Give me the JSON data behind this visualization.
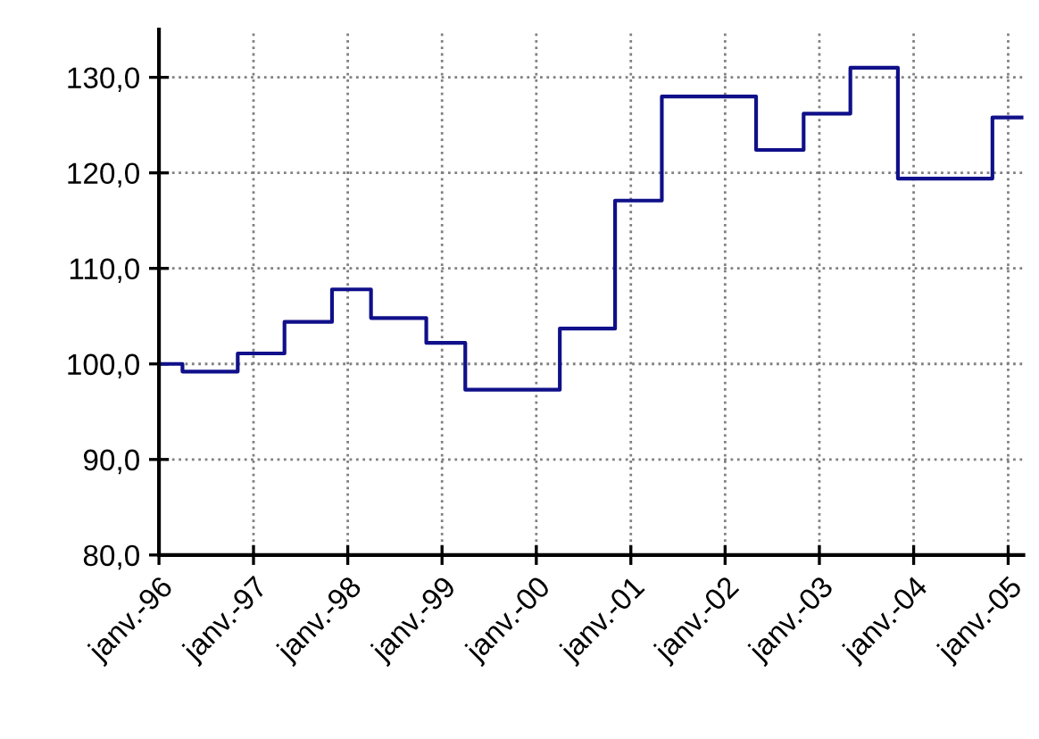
{
  "chart_data": {
    "type": "step",
    "x": [
      "1996-01",
      "1996-04",
      "1996-11",
      "1997-05",
      "1997-11",
      "1998-04",
      "1998-11",
      "1999-04",
      "2000-04",
      "2000-11",
      "2001-05",
      "2002-05",
      "2002-11",
      "2003-05",
      "2003-11",
      "2004-11",
      "2005-03"
    ],
    "series": [
      {
        "color": "#10108a",
        "values": [
          100.0,
          99.2,
          101.1,
          104.4,
          107.8,
          104.8,
          102.2,
          97.3,
          103.7,
          117.1,
          128.0,
          122.4,
          126.2,
          131.0,
          119.4,
          125.8,
          125.8
        ]
      }
    ],
    "xlim": [
      "1996-01",
      "2005-03"
    ],
    "xticks": [
      {
        "value": "1996-01",
        "label": "janv.-96"
      },
      {
        "value": "1997-01",
        "label": "janv.-97"
      },
      {
        "value": "1998-01",
        "label": "janv.-98"
      },
      {
        "value": "1999-01",
        "label": "janv.-99"
      },
      {
        "value": "2000-01",
        "label": "janv.-00"
      },
      {
        "value": "2001-01",
        "label": "janv.-01"
      },
      {
        "value": "2002-01",
        "label": "janv.-02"
      },
      {
        "value": "2003-01",
        "label": "janv.-03"
      },
      {
        "value": "2004-01",
        "label": "janv.-04"
      },
      {
        "value": "2005-01",
        "label": "janv.-05"
      }
    ],
    "ylim": [
      80,
      135
    ],
    "yticks": [
      {
        "value": 80,
        "label": "80,0"
      },
      {
        "value": 90,
        "label": "90,0"
      },
      {
        "value": 100,
        "label": "100,0"
      },
      {
        "value": 110,
        "label": "110,0"
      },
      {
        "value": 120,
        "label": "120,0"
      },
      {
        "value": 130,
        "label": "130,0"
      }
    ],
    "grid": true,
    "marker": "none",
    "line_style": "solid"
  }
}
